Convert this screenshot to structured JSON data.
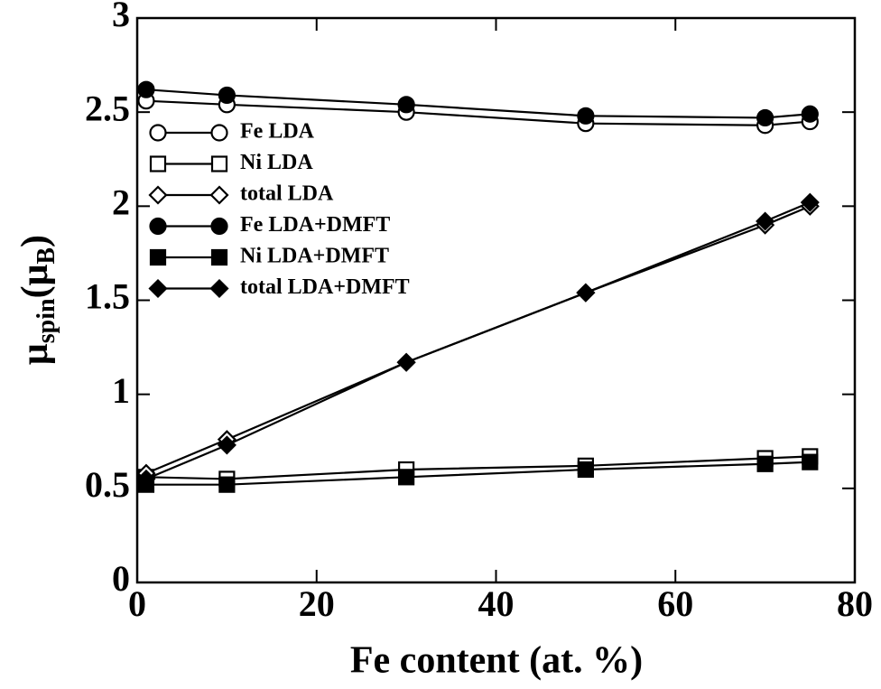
{
  "chart_data": {
    "type": "line",
    "xlabel": "Fe content (at. %)",
    "ylabel": [
      "μ",
      "spin",
      "(μ",
      "B",
      ")"
    ],
    "x": [
      1,
      10,
      30,
      50,
      70,
      75
    ],
    "series": [
      {
        "name": "Fe LDA",
        "color": "#000000",
        "marker": "circle",
        "filled": false,
        "values": [
          2.56,
          2.54,
          2.5,
          2.44,
          2.43,
          2.45
        ]
      },
      {
        "name": "Ni LDA",
        "color": "#000000",
        "marker": "square",
        "filled": false,
        "values": [
          0.56,
          0.55,
          0.6,
          0.62,
          0.66,
          0.67
        ]
      },
      {
        "name": "total LDA",
        "color": "#000000",
        "marker": "diamond",
        "filled": false,
        "values": [
          0.58,
          0.76,
          1.17,
          1.54,
          1.9,
          2.0
        ]
      },
      {
        "name": "Fe LDA+DMFT",
        "color": "#000000",
        "marker": "circle",
        "filled": true,
        "values": [
          2.62,
          2.59,
          2.54,
          2.48,
          2.47,
          2.49
        ]
      },
      {
        "name": "Ni LDA+DMFT",
        "color": "#000000",
        "marker": "square",
        "filled": true,
        "values": [
          0.52,
          0.52,
          0.56,
          0.6,
          0.63,
          0.64
        ]
      },
      {
        "name": "total LDA+DMFT",
        "color": "#000000",
        "marker": "diamond",
        "filled": true,
        "values": [
          0.55,
          0.73,
          1.17,
          1.54,
          1.92,
          2.02
        ]
      }
    ],
    "xlim": [
      0,
      80
    ],
    "xticks": [
      0,
      20,
      40,
      60,
      80
    ],
    "ylim": [
      0,
      3
    ],
    "yticks": [
      0,
      0.5,
      1,
      1.5,
      2,
      2.5,
      3
    ],
    "grid": false,
    "legend": "upper left"
  }
}
